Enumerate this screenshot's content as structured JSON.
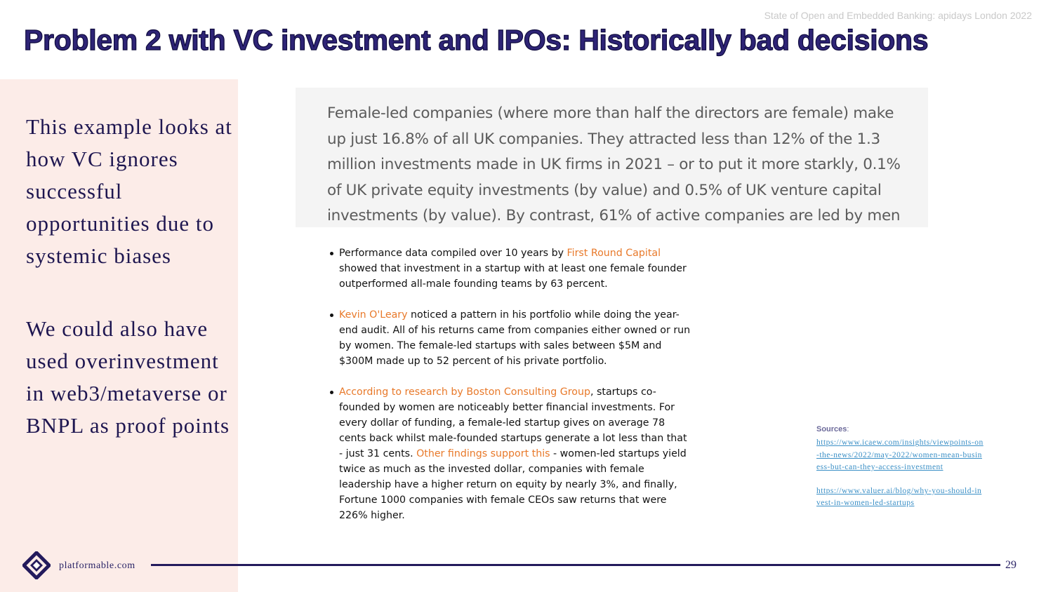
{
  "header": {
    "event": "State of Open and Embedded Banking: apidays London 2022",
    "title": "Problem 2 with VC investment and IPOs: Historically bad decisions"
  },
  "left_panel": {
    "paragraph_1": "This example looks at how VC ignores successful opportunities due to systemic biases",
    "paragraph_2": "We could also have used overinvestment in web3/metaverse or BNPL as proof points"
  },
  "quote": "Female-led companies (where more than half the directors are female) make up just 16.8% of all UK companies. They attracted less than 12% of the 1.3 million investments made in UK firms in 2021 – or to put it more starkly, 0.1% of UK private equity investments (by value) and 0.5% of UK venture capital investments (by value). By contrast, 61% of active companies are led by men",
  "bullets": [
    {
      "before": "Performance data compiled over 10 years by ",
      "link": "First Round Capital",
      "after": " showed that investment in a startup with at least one female founder outperformed all-male founding teams by 63 percent."
    },
    {
      "link": "Kevin O'Leary",
      "after": " noticed a pattern in his portfolio while doing the year-end audit. All of his returns came from companies either owned or run by women. The female-led startups with sales between $5M and $300M made up to 52 percent of his private portfolio."
    },
    {
      "link": "According to research by Boston Consulting Group",
      "middle": ", startups co-founded by women are noticeably better financial investments. For every dollar of funding, a female-led startup gives on average 78 cents back whilst male-founded startups generate a lot less than that - just 31 cents. ",
      "link_2": "Other findings support this",
      "after": " - women-led startups yield twice as much as the invested dollar, companies with female leadership have a higher return on equity by nearly 3%, and finally, Fortune 1000 companies with female CEOs saw returns that were 226% higher."
    }
  ],
  "sources": {
    "label": "Sources",
    "colon": ":",
    "links": [
      "https://www.icaew.com/insights/viewpoints-on-the-news/2022/may-2022/women-mean-business-but-can-they-access-investment",
      "https://www.valuer.ai/blog/why-you-should-invest-in-women-led-startups"
    ]
  },
  "footer": {
    "brand": "platformable.com",
    "page_number": "29"
  },
  "colors": {
    "title": "#2e2476",
    "left_panel_bg": "#fcece8",
    "accent_orange": "#e8792a",
    "link_blue": "#3a8fc6",
    "footer_line": "#231a5c"
  }
}
